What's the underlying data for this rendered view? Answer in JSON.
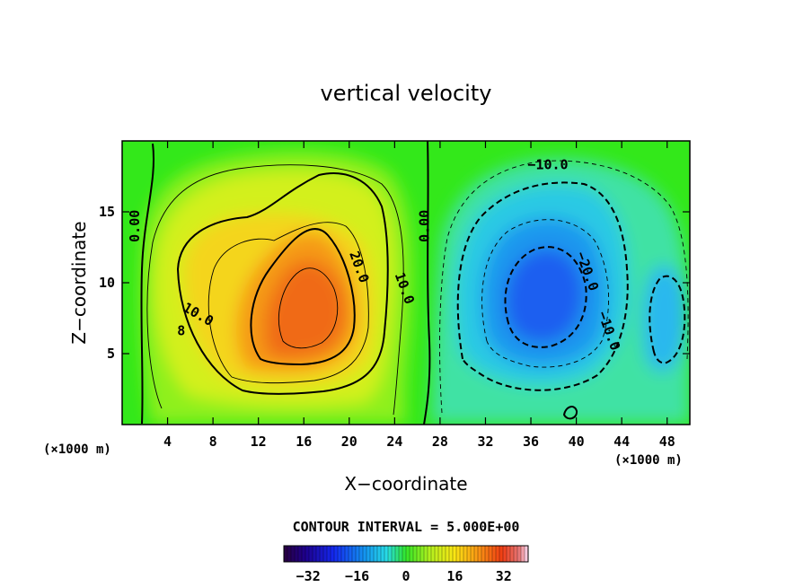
{
  "chart_data": {
    "type": "heatmap",
    "title": "vertical velocity",
    "xlabel": "X−coordinate",
    "ylabel": "Z−coordinate",
    "x_units": "(×1000 m)",
    "y_units": "(×1000 m)",
    "xlim": [
      0,
      50
    ],
    "ylim": [
      0,
      20
    ],
    "xticks": [
      4,
      8,
      12,
      16,
      20,
      24,
      28,
      32,
      36,
      40,
      44,
      48
    ],
    "yticks": [
      5,
      10,
      15
    ],
    "contour_interval_text": "CONTOUR INTERVAL = 5.000E+00",
    "contour_interval": 5,
    "contour_labels": [
      {
        "text": "0.00",
        "x": 1.5,
        "z": 14.0
      },
      {
        "text": "0.00",
        "x": 27.0,
        "z": 14.0
      },
      {
        "text": "10.0",
        "x": 6.5,
        "z": 7.5
      },
      {
        "text": "20.0",
        "x": 20.5,
        "z": 11.0
      },
      {
        "text": "10.0",
        "x": 24.5,
        "z": 9.5
      },
      {
        "text": "8",
        "x": 5.2,
        "z": 6.3
      },
      {
        "text": "−10.0",
        "x": 37.5,
        "z": 18.0
      },
      {
        "text": "−20.0",
        "x": 40.6,
        "z": 10.7
      },
      {
        "text": "−10.0",
        "x": 42.5,
        "z": 6.5
      }
    ],
    "field_features": [
      {
        "sign": "positive",
        "center_x": 16,
        "center_z": 9,
        "peak": 30
      },
      {
        "sign": "negative",
        "center_x": 36,
        "center_z": 9,
        "peak": -32
      },
      {
        "sign": "negative",
        "center_x": 47,
        "center_z": 8,
        "peak": -20
      }
    ],
    "colorbar": {
      "ticks": [
        "−32",
        "−16",
        "0",
        "16",
        "32"
      ],
      "range": [
        -40,
        40
      ]
    },
    "grid": false,
    "legend": "colorbar-bottom"
  }
}
